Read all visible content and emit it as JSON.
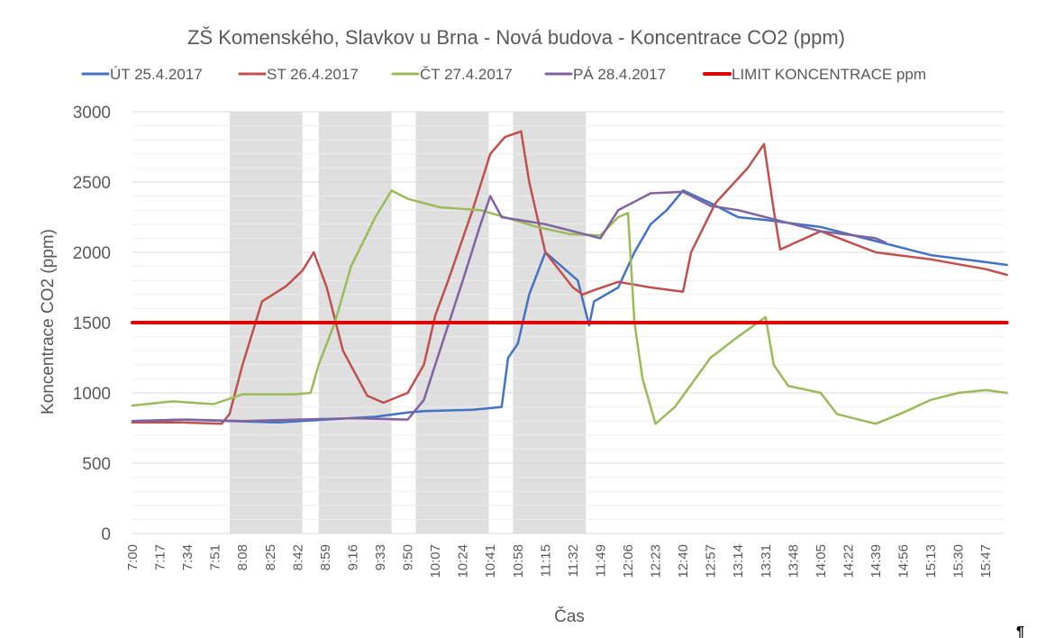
{
  "chart_data": {
    "type": "line",
    "title": "ZŠ Komenského, Slavkov u Brna - Nová budova - Koncentrace CO2 (ppm)",
    "xlabel": "Čas",
    "ylabel": "Koncentrace CO2 (ppm)",
    "ylim": [
      0,
      3000
    ],
    "y_ticks": [
      "0",
      "500",
      "1000",
      "1500",
      "2000",
      "2500",
      "3000"
    ],
    "x_tick_labels": [
      "7:00",
      "7:17",
      "7:34",
      "7:51",
      "8:08",
      "8:25",
      "8:42",
      "8:59",
      "9:16",
      "9:33",
      "9:50",
      "10:07",
      "10:24",
      "10:41",
      "10:58",
      "11:15",
      "11:32",
      "11:49",
      "12:06",
      "12:23",
      "12:40",
      "12:57",
      "13:14",
      "13:31",
      "13:48",
      "14:05",
      "14:22",
      "14:39",
      "14:56",
      "15:13",
      "15:30",
      "15:47"
    ],
    "x_minutes_range": [
      420,
      958
    ],
    "grid": true,
    "legend_position": "top",
    "shaded_periods": [
      {
        "start": "8:00",
        "end": "8:45"
      },
      {
        "start": "8:55",
        "end": "9:40"
      },
      {
        "start": "9:55",
        "end": "10:40"
      },
      {
        "start": "10:55",
        "end": "11:40"
      }
    ],
    "series": [
      {
        "name": "ÚT 25.4.2017",
        "color": "#4472C4",
        "points": [
          [
            "7:00",
            800
          ],
          [
            "7:30",
            810
          ],
          [
            "8:00",
            800
          ],
          [
            "8:30",
            790
          ],
          [
            "9:00",
            810
          ],
          [
            "9:30",
            830
          ],
          [
            "9:50",
            860
          ],
          [
            "10:00",
            870
          ],
          [
            "10:30",
            880
          ],
          [
            "10:48",
            900
          ],
          [
            "10:52",
            1250
          ],
          [
            "10:58",
            1350
          ],
          [
            "11:05",
            1700
          ],
          [
            "11:15",
            2000
          ],
          [
            "11:25",
            1900
          ],
          [
            "11:35",
            1800
          ],
          [
            "11:42",
            1480
          ],
          [
            "11:45",
            1650
          ],
          [
            "12:00",
            1750
          ],
          [
            "12:10",
            2000
          ],
          [
            "12:20",
            2200
          ],
          [
            "12:30",
            2300
          ],
          [
            "12:40",
            2440
          ],
          [
            "12:57",
            2350
          ],
          [
            "13:14",
            2250
          ],
          [
            "13:31",
            2230
          ],
          [
            "14:05",
            2180
          ],
          [
            "14:39",
            2080
          ],
          [
            "15:13",
            1980
          ],
          [
            "15:47",
            1930
          ],
          [
            "16:00",
            1910
          ]
        ]
      },
      {
        "name": "ST 26.4.2017",
        "color": "#C0504D",
        "points": [
          [
            "7:00",
            790
          ],
          [
            "7:30",
            790
          ],
          [
            "7:55",
            780
          ],
          [
            "8:00",
            850
          ],
          [
            "8:08",
            1200
          ],
          [
            "8:20",
            1650
          ],
          [
            "8:35",
            1760
          ],
          [
            "8:45",
            1870
          ],
          [
            "8:52",
            2000
          ],
          [
            "9:00",
            1750
          ],
          [
            "9:10",
            1300
          ],
          [
            "9:25",
            980
          ],
          [
            "9:35",
            930
          ],
          [
            "9:50",
            1000
          ],
          [
            "10:00",
            1200
          ],
          [
            "10:07",
            1550
          ],
          [
            "10:15",
            1800
          ],
          [
            "10:30",
            2300
          ],
          [
            "10:41",
            2700
          ],
          [
            "10:50",
            2820
          ],
          [
            "11:00",
            2860
          ],
          [
            "11:05",
            2500
          ],
          [
            "11:15",
            2000
          ],
          [
            "11:32",
            1750
          ],
          [
            "11:38",
            1700
          ],
          [
            "11:45",
            1730
          ],
          [
            "12:00",
            1790
          ],
          [
            "12:20",
            1750
          ],
          [
            "12:40",
            1720
          ],
          [
            "12:45",
            2000
          ],
          [
            "13:00",
            2350
          ],
          [
            "13:20",
            2600
          ],
          [
            "13:30",
            2770
          ],
          [
            "13:36",
            2300
          ],
          [
            "13:40",
            2020
          ],
          [
            "14:05",
            2150
          ],
          [
            "14:39",
            2000
          ],
          [
            "15:13",
            1950
          ],
          [
            "15:47",
            1880
          ],
          [
            "16:00",
            1840
          ]
        ]
      },
      {
        "name": "ČT 27.4.2017",
        "color": "#9BBB59",
        "points": [
          [
            "7:00",
            910
          ],
          [
            "7:25",
            940
          ],
          [
            "7:50",
            920
          ],
          [
            "8:08",
            990
          ],
          [
            "8:40",
            990
          ],
          [
            "8:50",
            1000
          ],
          [
            "8:55",
            1200
          ],
          [
            "9:05",
            1500
          ],
          [
            "9:15",
            1900
          ],
          [
            "9:30",
            2250
          ],
          [
            "9:40",
            2440
          ],
          [
            "9:50",
            2380
          ],
          [
            "10:10",
            2320
          ],
          [
            "10:35",
            2300
          ],
          [
            "10:50",
            2250
          ],
          [
            "11:10",
            2180
          ],
          [
            "11:30",
            2130
          ],
          [
            "11:49",
            2120
          ],
          [
            "12:00",
            2250
          ],
          [
            "12:06",
            2280
          ],
          [
            "12:10",
            1500
          ],
          [
            "12:15",
            1100
          ],
          [
            "12:23",
            780
          ],
          [
            "12:35",
            900
          ],
          [
            "12:57",
            1250
          ],
          [
            "13:14",
            1400
          ],
          [
            "13:31",
            1540
          ],
          [
            "13:36",
            1200
          ],
          [
            "13:45",
            1050
          ],
          [
            "14:05",
            1000
          ],
          [
            "14:15",
            850
          ],
          [
            "14:39",
            780
          ],
          [
            "14:56",
            860
          ],
          [
            "15:13",
            950
          ],
          [
            "15:30",
            1000
          ],
          [
            "15:47",
            1020
          ],
          [
            "16:00",
            1000
          ]
        ]
      },
      {
        "name": "PÁ 28.4.2017",
        "color": "#8064A2",
        "points": [
          [
            "7:00",
            800
          ],
          [
            "7:34",
            810
          ],
          [
            "8:08",
            800
          ],
          [
            "8:42",
            810
          ],
          [
            "9:16",
            820
          ],
          [
            "9:50",
            810
          ],
          [
            "10:00",
            950
          ],
          [
            "10:07",
            1200
          ],
          [
            "10:24",
            1800
          ],
          [
            "10:35",
            2200
          ],
          [
            "10:41",
            2400
          ],
          [
            "10:48",
            2250
          ],
          [
            "11:15",
            2200
          ],
          [
            "11:32",
            2150
          ],
          [
            "11:49",
            2100
          ],
          [
            "12:00",
            2300
          ],
          [
            "12:20",
            2420
          ],
          [
            "12:40",
            2430
          ],
          [
            "12:57",
            2330
          ],
          [
            "13:14",
            2300
          ],
          [
            "13:31",
            2250
          ],
          [
            "13:48",
            2200
          ],
          [
            "14:05",
            2150
          ],
          [
            "14:39",
            2100
          ],
          [
            "14:45",
            2070
          ]
        ]
      },
      {
        "name": "LIMIT KONCENTRACE ppm",
        "color": "#E00000",
        "points": [
          [
            "7:00",
            1500
          ],
          [
            "16:00",
            1500
          ]
        ]
      }
    ]
  },
  "footer": {
    "mark": "¶"
  }
}
